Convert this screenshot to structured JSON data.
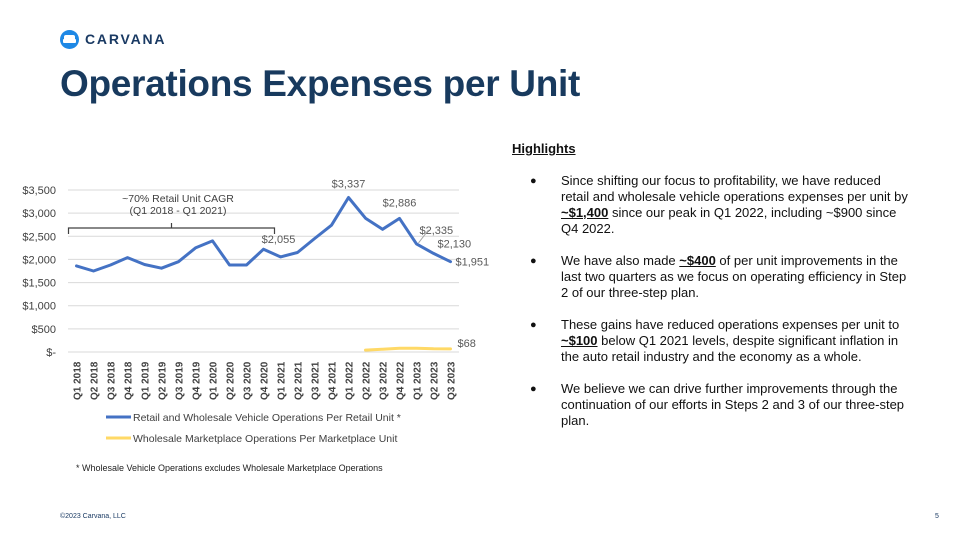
{
  "brand": {
    "logo_text": "CARVANA",
    "accent": "#1e88e5",
    "navy": "#183a5e"
  },
  "title": "Operations Expenses per Unit",
  "highlights": {
    "heading": "Highlights",
    "bullets": [
      {
        "pre": "Since shifting our focus to profitability, we have reduced retail and wholesale vehicle operations expenses per unit by ",
        "em": "~$1,400",
        "post": " since our peak in Q1 2022, including ~$900 since Q4 2022."
      },
      {
        "pre": "We have also made ",
        "em": "~$400",
        "post": " of per unit improvements in the last two quarters as we focus on operating efficiency in Step 2 of our three-step plan."
      },
      {
        "pre": "These gains have reduced operations expenses per unit to ",
        "em": "~$100",
        "post": " below Q1 2021 levels, despite significant inflation in the auto retail industry and the economy as a whole."
      },
      {
        "pre": "We believe we can drive further improvements through the continuation of our efforts in Steps 2 and 3 of our three-step plan.",
        "em": "",
        "post": ""
      }
    ]
  },
  "chart_data": {
    "type": "line",
    "categories": [
      "Q1 2018",
      "Q2 2018",
      "Q3 2018",
      "Q4 2018",
      "Q1 2019",
      "Q2 2019",
      "Q3 2019",
      "Q4 2019",
      "Q1 2020",
      "Q2 2020",
      "Q3 2020",
      "Q4 2020",
      "Q1 2021",
      "Q2 2021",
      "Q3 2021",
      "Q4 2021",
      "Q1 2022",
      "Q2 2022",
      "Q3 2022",
      "Q4 2022",
      "Q1 2023",
      "Q2 2023",
      "Q3 2023"
    ],
    "series": [
      {
        "name": "Retail and Wholesale Vehicle Operations Per Retail Unit *",
        "color": "#4472c4",
        "values": [
          1860,
          1750,
          1880,
          2040,
          1890,
          1810,
          1950,
          2250,
          2400,
          1880,
          1880,
          2220,
          2055,
          2150,
          2450,
          2740,
          3337,
          2890,
          2650,
          2886,
          2335,
          2130,
          1951
        ]
      },
      {
        "name": "Wholesale Marketplace Operations Per Marketplace Unit",
        "color": "#ffd966",
        "values": [
          null,
          null,
          null,
          null,
          null,
          null,
          null,
          null,
          null,
          null,
          null,
          null,
          null,
          null,
          null,
          null,
          null,
          40,
          60,
          80,
          80,
          70,
          68
        ]
      }
    ],
    "ylim": [
      0,
      3500
    ],
    "yticks": [
      {
        "value": 0,
        "label": "$-"
      },
      {
        "value": 500,
        "label": "$500"
      },
      {
        "value": 1000,
        "label": "$1,000"
      },
      {
        "value": 1500,
        "label": "$1,500"
      },
      {
        "value": 2000,
        "label": "$2,000"
      },
      {
        "value": 2500,
        "label": "$2,500"
      },
      {
        "value": 3000,
        "label": "$3,000"
      },
      {
        "value": 3500,
        "label": "$3,500"
      }
    ],
    "data_labels": [
      {
        "series": 0,
        "index": 12,
        "text": "$2,055"
      },
      {
        "series": 0,
        "index": 16,
        "text": "$3,337"
      },
      {
        "series": 0,
        "index": 19,
        "text": "$2,886"
      },
      {
        "series": 0,
        "index": 20,
        "text": "$2,335"
      },
      {
        "series": 0,
        "index": 21,
        "text": "$2,130"
      },
      {
        "series": 0,
        "index": 22,
        "text": "$1,951"
      },
      {
        "series": 1,
        "index": 22,
        "text": "$68"
      }
    ],
    "annotation": {
      "lines": [
        "~70% Retail Unit CAGR",
        "(Q1 2018 - Q1 2021)"
      ],
      "from": 0,
      "to": 12
    },
    "legend_position": "bottom"
  },
  "footnote": "* Wholesale Vehicle Operations excludes Wholesale Marketplace Operations",
  "footer": {
    "copyright": "©2023 Carvana, LLC",
    "page": "5"
  }
}
